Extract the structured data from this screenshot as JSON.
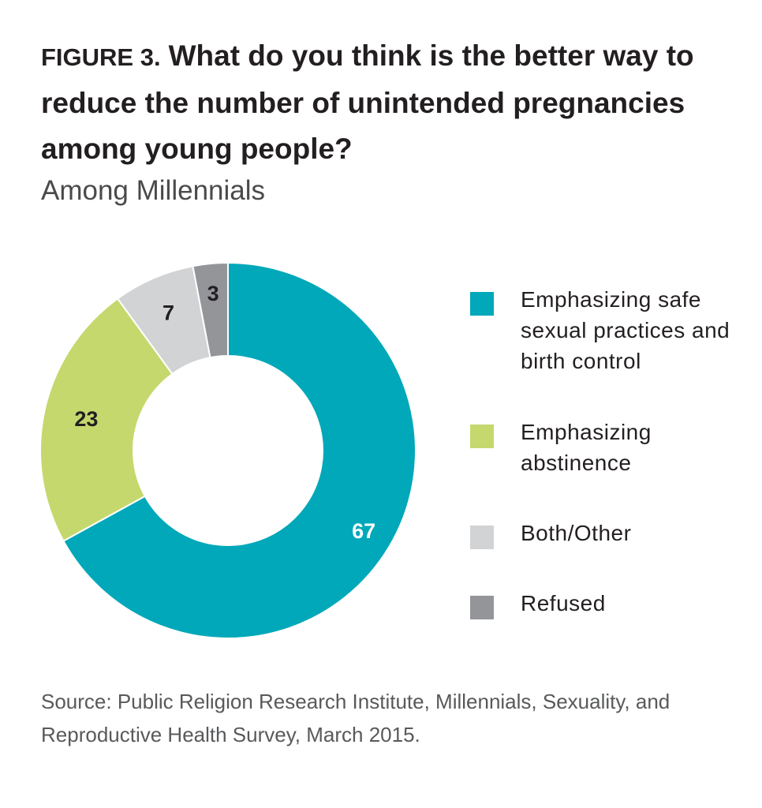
{
  "header": {
    "figure_label": "FIGURE 3.",
    "title": "What do you think is the better way to reduce the number of unintended pregnancies among young people?",
    "subtitle": "Among Millennials"
  },
  "source": "Source: Public Religion Research Institute, Millennials, Sexuality, and Reproductive Health Survey, March 2015.",
  "chart_data": {
    "type": "pie",
    "donut": true,
    "title": "What do you think is the better way to reduce the number of unintended pregnancies among young people?",
    "subtitle": "Among Millennials",
    "legend_position": "right",
    "categories": [
      "Emphasizing safe sexual practices and birth control",
      "Emphasizing abstinence",
      "Both/Other",
      "Refused"
    ],
    "values": [
      67,
      23,
      7,
      3
    ],
    "data_labels": [
      "67",
      "23",
      "7",
      "3"
    ],
    "colors": [
      "#00a8b9",
      "#c5d86d",
      "#d1d3d4",
      "#939598"
    ],
    "label_colors": [
      "#ffffff",
      "#231f20",
      "#231f20",
      "#231f20"
    ]
  }
}
